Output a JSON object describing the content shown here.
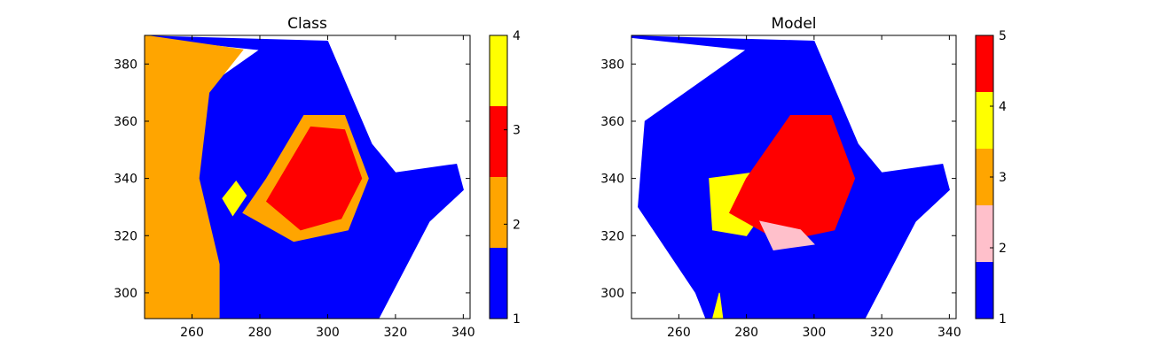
{
  "chart_data": [
    {
      "type": "heatmap",
      "title": "Class",
      "xlabel": "",
      "ylabel": "",
      "xlim": [
        246,
        342
      ],
      "ylim": [
        291,
        390
      ],
      "xticks": [
        260,
        280,
        300,
        320,
        340
      ],
      "yticks": [
        300,
        320,
        340,
        360,
        380
      ],
      "colorbar": {
        "colors": [
          "#0000ff",
          "#ffa500",
          "#ff0000",
          "#ffff00"
        ],
        "ticks": [
          1,
          2,
          3,
          4
        ],
        "range": [
          1,
          4
        ]
      },
      "regions": [
        {
          "category": 1,
          "color": "#0000ff",
          "points": [
            [
              268,
              291
            ],
            [
              315,
              291
            ],
            [
              330,
              325
            ],
            [
              340,
              336
            ],
            [
              338,
              345
            ],
            [
              320,
              342
            ],
            [
              313,
              352
            ],
            [
              300,
              388
            ],
            [
              240,
              390
            ],
            [
              280,
              385
            ],
            [
              250,
              360
            ],
            [
              248,
              330
            ],
            [
              265,
              300
            ]
          ]
        },
        {
          "category": 2,
          "color": "#ffa500",
          "points": [
            [
              246,
              390
            ],
            [
              275,
              385
            ],
            [
              265,
              370
            ],
            [
              262,
              340
            ],
            [
              268,
              310
            ],
            [
              268,
              291
            ],
            [
              246,
              291
            ]
          ]
        },
        {
          "category": 2,
          "color": "#ffa500",
          "points": [
            [
              282,
              340
            ],
            [
              293,
              362
            ],
            [
              305,
              362
            ],
            [
              312,
              340
            ],
            [
              306,
              322
            ],
            [
              290,
              318
            ],
            [
              275,
              328
            ]
          ]
        },
        {
          "category": 3,
          "color": "#ff0000",
          "points": [
            [
              286,
              340
            ],
            [
              295,
              358
            ],
            [
              305,
              357
            ],
            [
              310,
              340
            ],
            [
              304,
              326
            ],
            [
              292,
              322
            ],
            [
              282,
              332
            ]
          ]
        },
        {
          "category": 4,
          "color": "#ffff00",
          "points": [
            [
              269,
              333
            ],
            [
              273,
              339
            ],
            [
              276,
              334
            ],
            [
              272,
              327
            ]
          ]
        }
      ]
    },
    {
      "type": "heatmap",
      "title": "Model",
      "xlabel": "",
      "ylabel": "",
      "xlim": [
        246,
        342
      ],
      "ylim": [
        291,
        390
      ],
      "xticks": [
        260,
        280,
        300,
        320,
        340
      ],
      "yticks": [
        300,
        320,
        340,
        360,
        380
      ],
      "colorbar": {
        "colors": [
          "#0000ff",
          "#ffc0cb",
          "#ffa500",
          "#ffff00",
          "#ff0000"
        ],
        "ticks": [
          1,
          2,
          3,
          4,
          5
        ],
        "range": [
          1,
          5
        ]
      },
      "regions": [
        {
          "category": 1,
          "color": "#0000ff",
          "points": [
            [
              268,
              291
            ],
            [
              315,
              291
            ],
            [
              330,
              325
            ],
            [
              340,
              336
            ],
            [
              338,
              345
            ],
            [
              320,
              342
            ],
            [
              313,
              352
            ],
            [
              300,
              388
            ],
            [
              240,
              390
            ],
            [
              280,
              385
            ],
            [
              250,
              360
            ],
            [
              248,
              330
            ],
            [
              265,
              300
            ]
          ]
        },
        {
          "category": 4,
          "color": "#ffff00",
          "points": [
            [
              269,
              340
            ],
            [
              282,
              342
            ],
            [
              286,
              330
            ],
            [
              280,
              320
            ],
            [
              270,
              322
            ]
          ]
        },
        {
          "category": 5,
          "color": "#ff0000",
          "points": [
            [
              280,
              340
            ],
            [
              293,
              362
            ],
            [
              305,
              362
            ],
            [
              312,
              340
            ],
            [
              306,
              322
            ],
            [
              290,
              318
            ],
            [
              275,
              328
            ]
          ]
        },
        {
          "category": 2,
          "color": "#ffc0cb",
          "points": [
            [
              284,
              325
            ],
            [
              296,
              322
            ],
            [
              300,
              317
            ],
            [
              288,
              315
            ]
          ]
        },
        {
          "category": 4,
          "color": "#ffff00",
          "points": [
            [
              270,
              291
            ],
            [
              273,
              291
            ],
            [
              272,
              300
            ]
          ]
        }
      ]
    }
  ]
}
